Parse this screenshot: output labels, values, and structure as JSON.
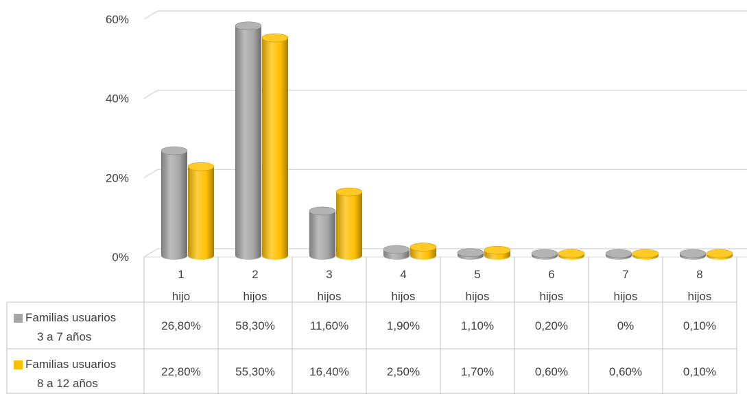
{
  "chart_data": {
    "type": "bar",
    "categories": [
      {
        "num": "1",
        "word": "hijo"
      },
      {
        "num": "2",
        "word": "hijos"
      },
      {
        "num": "3",
        "word": "hijos"
      },
      {
        "num": "4",
        "word": "hijos"
      },
      {
        "num": "5",
        "word": "hijos"
      },
      {
        "num": "6",
        "word": "hijos"
      },
      {
        "num": "7",
        "word": "hijos"
      },
      {
        "num": "8",
        "word": "hijos"
      }
    ],
    "series": [
      {
        "name_lines": [
          "Familias usuarios",
          "3 a 7 años"
        ],
        "color": "#A6A6A6",
        "values": [
          26.8,
          58.3,
          11.6,
          1.9,
          1.1,
          0.2,
          0,
          0.1
        ],
        "labels": [
          "26,80%",
          "58,30%",
          "11,60%",
          "1,90%",
          "1,10%",
          "0,20%",
          "0%",
          "0,10%"
        ]
      },
      {
        "name_lines": [
          "Familias usuarios",
          "8 a 12 años"
        ],
        "color": "#FFC000",
        "values": [
          22.8,
          55.3,
          16.4,
          2.5,
          1.7,
          0.6,
          0.6,
          0.1
        ],
        "labels": [
          "22,80%",
          "55,30%",
          "16,40%",
          "2,50%",
          "1,70%",
          "0,60%",
          "0,60%",
          "0,10%"
        ]
      }
    ],
    "y_ticks": [
      {
        "value": 0,
        "label": "0%"
      },
      {
        "value": 20,
        "label": "20%"
      },
      {
        "value": 40,
        "label": "40%"
      },
      {
        "value": 60,
        "label": "60%"
      }
    ],
    "ylim": [
      0,
      60
    ],
    "grid": true,
    "legend_placement": "data-table-left",
    "style": "3d-cylinder-clustered"
  }
}
